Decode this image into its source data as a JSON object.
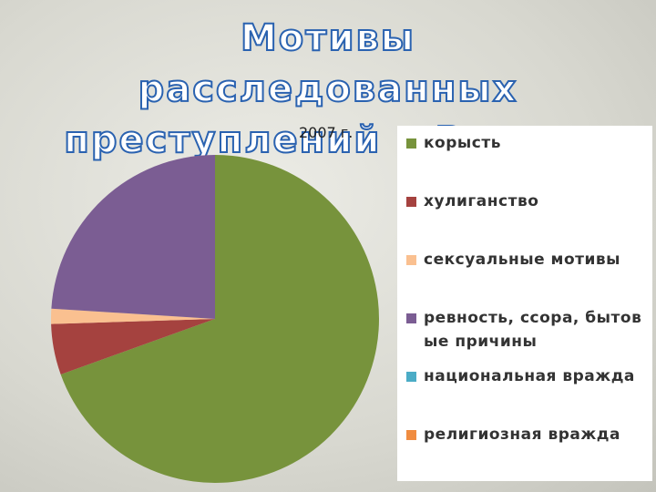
{
  "chart_data": {
    "type": "pie",
    "title": "Мотивы расследованных преступлений в России",
    "subtitle": "2007 г.",
    "categories": [
      "корысть",
      "хулиганство",
      "сексуальные мотивы",
      "ревность, ссора, бытовые причины",
      "национальная вражда",
      "религиозная вражда"
    ],
    "values": [
      69.5,
      5,
      1.5,
      24,
      0,
      0
    ],
    "colors": [
      "#77933c",
      "#a5423f",
      "#fac090",
      "#7b5d93",
      "#4bacc6",
      "#f08c40"
    ],
    "legend": "right"
  }
}
